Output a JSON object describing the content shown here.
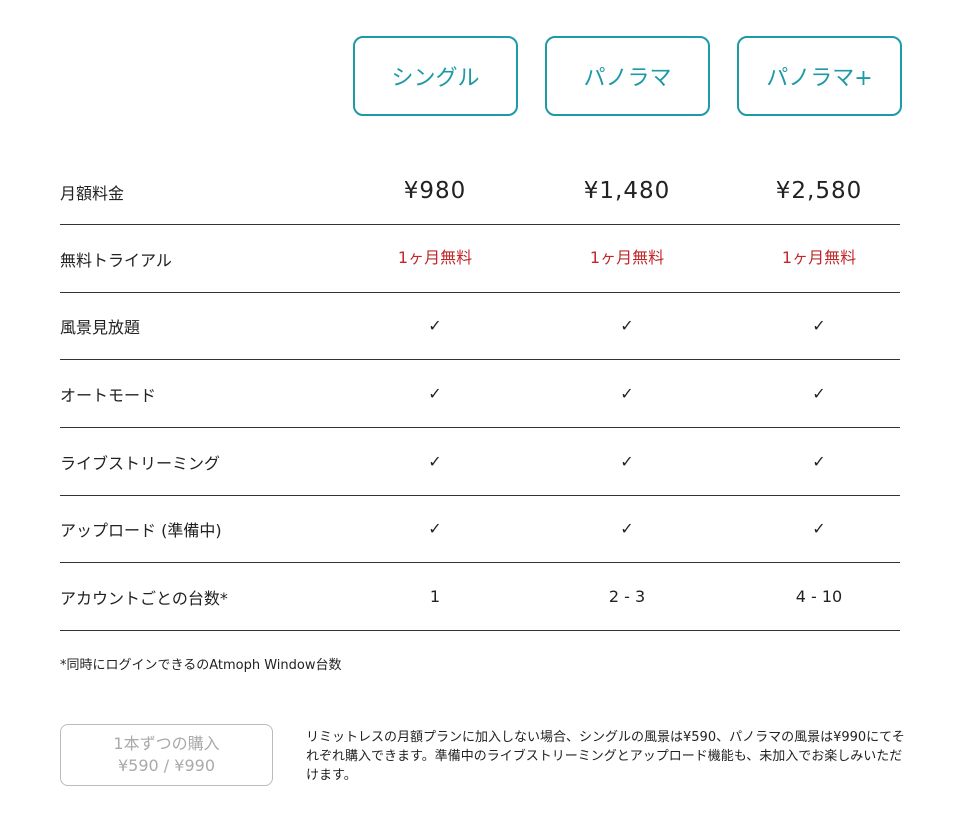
{
  "plans": [
    {
      "label": "シングル"
    },
    {
      "label": "パノラマ"
    },
    {
      "label": "パノラマ+"
    }
  ],
  "rows": [
    {
      "label": "月額料金",
      "values": [
        "¥980",
        "¥1,480",
        "¥2,580"
      ]
    },
    {
      "label": "無料トライアル",
      "values": [
        "1ヶ月無料",
        "1ヶ月無料",
        "1ヶ月無料"
      ]
    },
    {
      "label": "風景見放題",
      "values": [
        "✓",
        "✓",
        "✓"
      ]
    },
    {
      "label": "オートモード",
      "values": [
        "✓",
        "✓",
        "✓"
      ]
    },
    {
      "label": "ライブストリーミング",
      "values": [
        "✓",
        "✓",
        "✓"
      ]
    },
    {
      "label": "アップロード (準備中)",
      "values": [
        "✓",
        "✓",
        "✓"
      ]
    },
    {
      "label": "アカウントごとの台数*",
      "values": [
        "1",
        "2 - 3",
        "4 - 10"
      ]
    }
  ],
  "footnote": "*同時にログインできるのAtmoph Window台数",
  "buy_button": {
    "line1": "1本ずつの購入",
    "line2": "¥590 / ¥990"
  },
  "description": "リミットレスの月額プランに加入しない場合、シングルの風景は¥590、パノラマの風景は¥990にてそれぞれ購入できます。準備中のライブストリーミングとアップロード機能も、未加入でお楽しみいただけます。",
  "colors": {
    "accent": "#1e9aa6",
    "trial": "#c0282d"
  }
}
